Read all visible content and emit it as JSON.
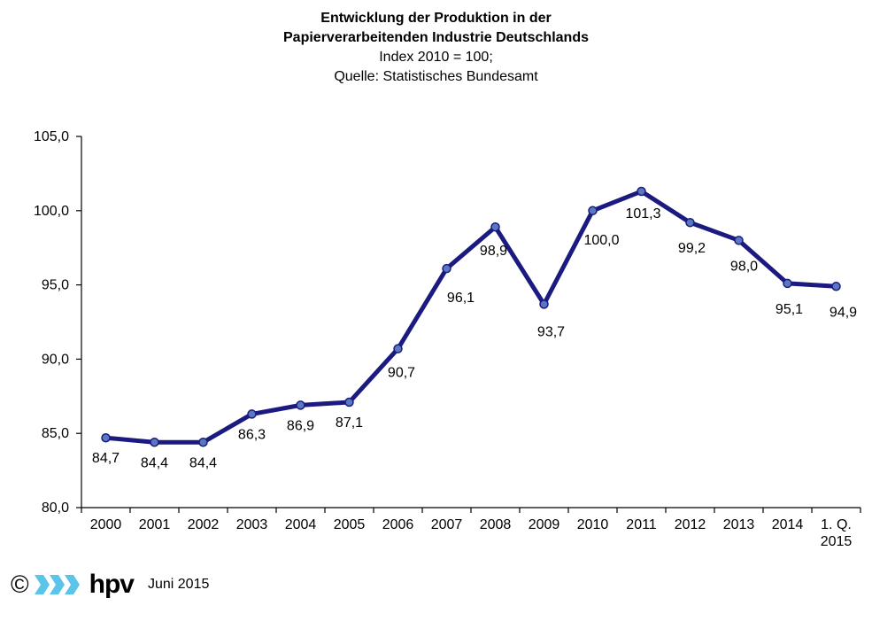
{
  "chart_data": {
    "type": "line",
    "title": "Entwicklung der Produktion in der",
    "title2": "Papierverarbeitenden Industrie Deutschlands",
    "subtitle": "Index 2010 = 100;",
    "source": "Quelle: Statistisches Bundesamt",
    "categories": [
      "2000",
      "2001",
      "2002",
      "2003",
      "2004",
      "2005",
      "2006",
      "2007",
      "2008",
      "2009",
      "2010",
      "2011",
      "2012",
      "2013",
      "2014",
      "1. Q. 2015"
    ],
    "category_lines": [
      [
        "2000"
      ],
      [
        "2001"
      ],
      [
        "2002"
      ],
      [
        "2003"
      ],
      [
        "2004"
      ],
      [
        "2005"
      ],
      [
        "2006"
      ],
      [
        "2007"
      ],
      [
        "2008"
      ],
      [
        "2009"
      ],
      [
        "2010"
      ],
      [
        "2011"
      ],
      [
        "2012"
      ],
      [
        "2013"
      ],
      [
        "2014"
      ],
      [
        "1. Q.",
        "2015"
      ]
    ],
    "values": [
      84.7,
      84.4,
      84.4,
      86.3,
      86.9,
      87.1,
      90.7,
      96.1,
      98.9,
      93.7,
      100.0,
      101.3,
      99.2,
      98.0,
      95.1,
      94.9
    ],
    "data_labels": [
      "84,7",
      "84,4",
      "84,4",
      "86,3",
      "86,9",
      "87,1",
      "90,7",
      "96,1",
      "98,9",
      "93,7",
      "100,0",
      "101,3",
      "99,2",
      "98,0",
      "95,1",
      "94,9"
    ],
    "y_ticks": [
      80,
      85,
      90,
      95,
      100,
      105
    ],
    "y_tick_labels": [
      "80,0",
      "85,0",
      "90,0",
      "95,0",
      "100,0",
      "105,0"
    ],
    "ylim": [
      80,
      105
    ],
    "grid": false,
    "line_color": "#1a1a80",
    "marker_color": "#5a78c0"
  },
  "footer": {
    "copyright": "©",
    "logo_text": "hpv",
    "logo_color": "#5bc4e8",
    "date": "Juni 2015"
  }
}
